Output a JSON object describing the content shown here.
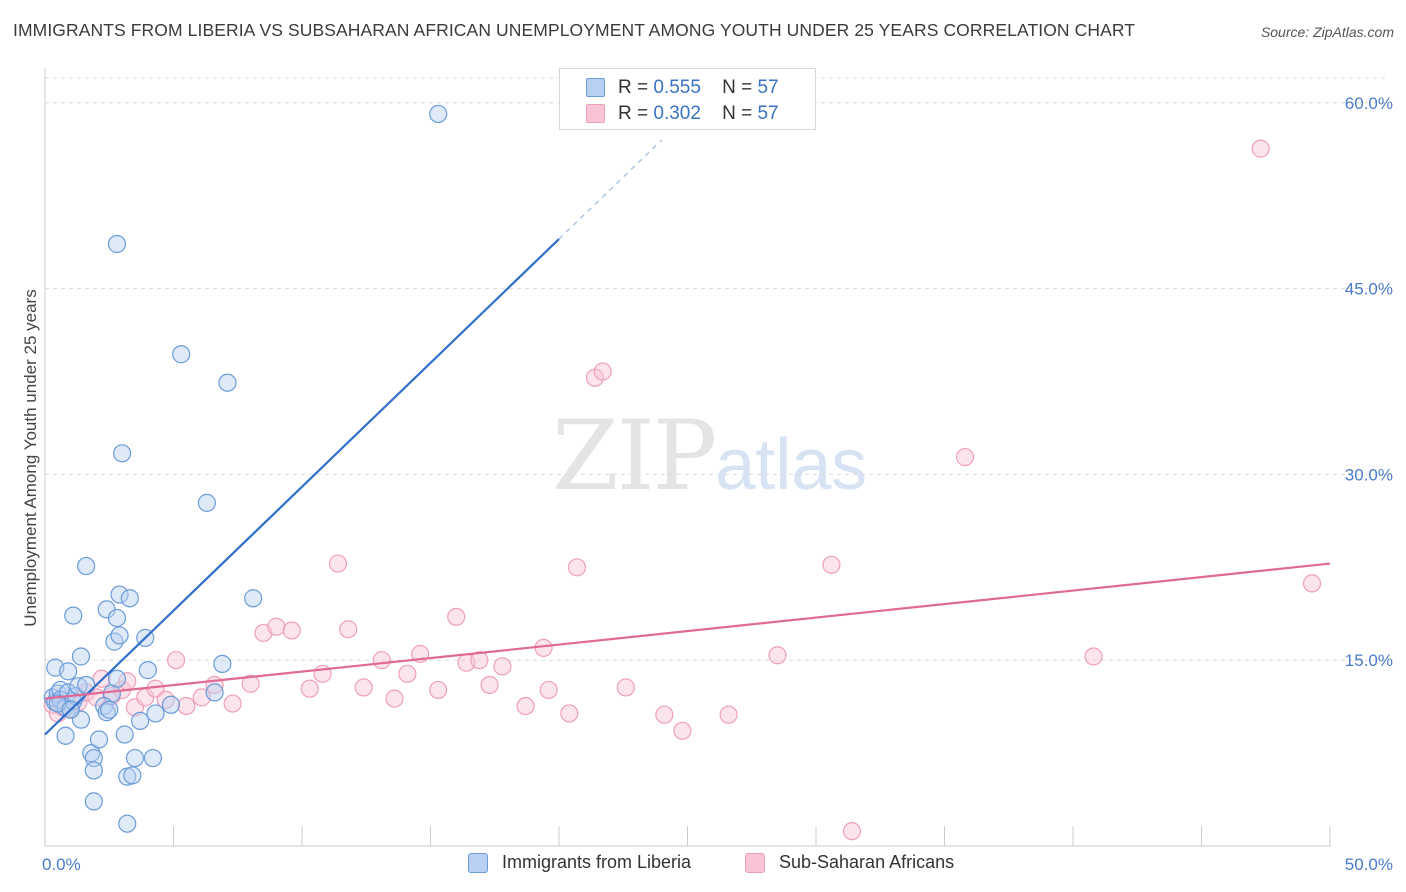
{
  "title": "IMMIGRANTS FROM LIBERIA VS SUBSAHARAN AFRICAN UNEMPLOYMENT AMONG YOUTH UNDER 25 YEARS CORRELATION CHART",
  "source": "Source: ZipAtlas.com",
  "watermark": {
    "zip": "ZIP",
    "atlas": "atlas"
  },
  "legend_top": [
    {
      "r_label": "R =",
      "r_value": "0.555",
      "n_label": "N =",
      "n_value": "57"
    },
    {
      "r_label": "R =",
      "r_value": "0.302",
      "n_label": "N =",
      "n_value": "57"
    }
  ],
  "colors": {
    "blue_fill": "#b8d1f2",
    "blue_stroke": "#6b9bd8",
    "blue_line": "#2f6fca",
    "pink_fill": "#f9c4d4",
    "pink_stroke": "#eea0b8",
    "pink_line": "#e06a95",
    "grid": "#dcdcdc",
    "tick_text": "#4a7cc8"
  },
  "chart_data": {
    "type": "scatter",
    "title": "IMMIGRANTS FROM LIBERIA VS SUBSAHARAN AFRICAN UNEMPLOYMENT AMONG YOUTH UNDER 25 YEARS CORRELATION CHART",
    "xlabel": "",
    "ylabel": "Unemployment Among Youth under 25 years",
    "xlim": [
      0,
      50
    ],
    "ylim": [
      0,
      62
    ],
    "x_tick_labels": [
      "0.0%",
      "50.0%"
    ],
    "y_ticks": [
      15,
      30,
      45,
      60
    ],
    "y_tick_labels": [
      "15.0%",
      "30.0%",
      "45.0%",
      "60.0%"
    ],
    "legend_position": "bottom",
    "series": [
      {
        "name": "Immigrants from Liberia",
        "r": 0.555,
        "n": 57,
        "trend": {
          "x0": 0.0,
          "y0": 9.0,
          "x1": 20.0,
          "y1": 49.0,
          "dash_x1": 24.0,
          "dash_y1": 57.0
        },
        "points": [
          [
            0.3,
            12.0
          ],
          [
            0.4,
            11.6
          ],
          [
            0.5,
            12.3
          ],
          [
            0.6,
            12.6
          ],
          [
            0.6,
            11.8
          ],
          [
            0.8,
            11.2
          ],
          [
            0.9,
            12.4
          ],
          [
            1.0,
            11.0
          ],
          [
            1.1,
            11.7
          ],
          [
            1.2,
            12.1
          ],
          [
            0.4,
            14.4
          ],
          [
            0.9,
            14.1
          ],
          [
            1.4,
            15.3
          ],
          [
            1.1,
            18.6
          ],
          [
            1.6,
            22.6
          ],
          [
            2.4,
            19.1
          ],
          [
            2.8,
            18.4
          ],
          [
            2.9,
            20.3
          ],
          [
            3.3,
            20.0
          ],
          [
            2.7,
            16.5
          ],
          [
            2.9,
            17.0
          ],
          [
            2.8,
            13.5
          ],
          [
            2.6,
            12.3
          ],
          [
            1.3,
            12.9
          ],
          [
            1.6,
            13.0
          ],
          [
            1.4,
            10.2
          ],
          [
            0.8,
            8.9
          ],
          [
            1.8,
            7.5
          ],
          [
            1.9,
            7.1
          ],
          [
            1.9,
            6.1
          ],
          [
            2.1,
            8.6
          ],
          [
            2.3,
            11.3
          ],
          [
            2.4,
            10.8
          ],
          [
            1.9,
            3.6
          ],
          [
            3.1,
            9.0
          ],
          [
            3.2,
            5.6
          ],
          [
            3.4,
            5.7
          ],
          [
            3.5,
            7.1
          ],
          [
            3.7,
            10.1
          ],
          [
            4.2,
            7.1
          ],
          [
            4.3,
            10.7
          ],
          [
            4.0,
            14.2
          ],
          [
            4.9,
            11.4
          ],
          [
            5.3,
            39.7
          ],
          [
            7.1,
            37.4
          ],
          [
            6.9,
            14.7
          ],
          [
            6.6,
            12.4
          ],
          [
            3.9,
            16.8
          ],
          [
            3.0,
            31.7
          ],
          [
            2.8,
            48.6
          ],
          [
            6.3,
            27.7
          ],
          [
            8.1,
            20.0
          ],
          [
            15.3,
            59.1
          ],
          [
            3.2,
            1.8
          ],
          [
            0.5,
            11.5
          ],
          [
            1.0,
            11.0
          ],
          [
            2.5,
            11.0
          ]
        ]
      },
      {
        "name": "Sub-Saharan Africans",
        "r": 0.302,
        "n": 57,
        "trend": {
          "x0": 0.0,
          "y0": 11.9,
          "x1": 50.0,
          "y1": 22.8
        },
        "points": [
          [
            0.3,
            11.4
          ],
          [
            0.5,
            10.7
          ],
          [
            0.7,
            11.2
          ],
          [
            1.0,
            11.1
          ],
          [
            1.3,
            11.6
          ],
          [
            1.6,
            12.4
          ],
          [
            2.0,
            12.0
          ],
          [
            2.2,
            13.5
          ],
          [
            2.6,
            12.1
          ],
          [
            3.0,
            12.6
          ],
          [
            3.2,
            13.3
          ],
          [
            3.5,
            11.2
          ],
          [
            3.9,
            12.0
          ],
          [
            4.3,
            12.7
          ],
          [
            4.7,
            11.8
          ],
          [
            5.1,
            15.0
          ],
          [
            5.5,
            11.3
          ],
          [
            6.1,
            12.0
          ],
          [
            6.6,
            13.0
          ],
          [
            7.3,
            11.5
          ],
          [
            8.0,
            13.1
          ],
          [
            8.5,
            17.2
          ],
          [
            9.0,
            17.7
          ],
          [
            9.6,
            17.4
          ],
          [
            10.3,
            12.7
          ],
          [
            10.8,
            13.9
          ],
          [
            11.4,
            22.8
          ],
          [
            11.8,
            17.5
          ],
          [
            12.4,
            12.8
          ],
          [
            13.1,
            15.0
          ],
          [
            13.6,
            11.9
          ],
          [
            14.1,
            13.9
          ],
          [
            14.6,
            15.5
          ],
          [
            15.3,
            12.6
          ],
          [
            16.0,
            18.5
          ],
          [
            16.4,
            14.8
          ],
          [
            16.9,
            15.0
          ],
          [
            17.3,
            13.0
          ],
          [
            17.8,
            14.5
          ],
          [
            18.7,
            11.3
          ],
          [
            19.4,
            16.0
          ],
          [
            19.6,
            12.6
          ],
          [
            20.4,
            10.7
          ],
          [
            20.7,
            22.5
          ],
          [
            21.4,
            37.8
          ],
          [
            21.7,
            38.3
          ],
          [
            22.6,
            12.8
          ],
          [
            24.1,
            10.6
          ],
          [
            24.8,
            9.3
          ],
          [
            26.6,
            10.6
          ],
          [
            28.5,
            15.4
          ],
          [
            30.6,
            22.7
          ],
          [
            35.8,
            31.4
          ],
          [
            40.8,
            15.3
          ],
          [
            47.3,
            56.3
          ],
          [
            49.3,
            21.2
          ],
          [
            31.4,
            1.2
          ]
        ]
      }
    ]
  },
  "legend_bottom": [
    "Immigrants from Liberia",
    "Sub-Saharan Africans"
  ]
}
